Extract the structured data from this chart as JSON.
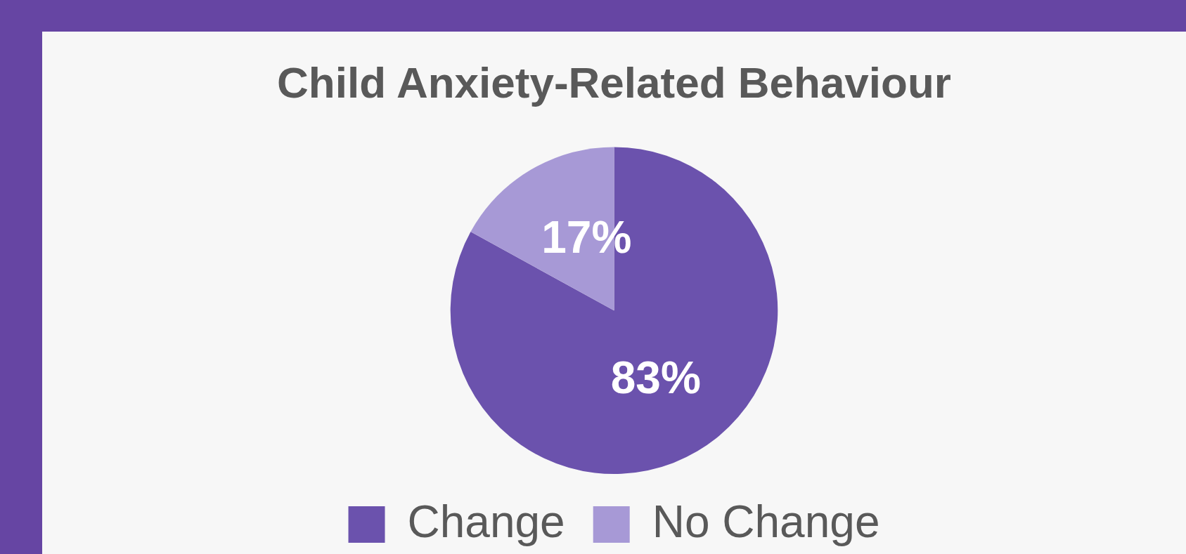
{
  "chart_data": {
    "type": "pie",
    "title": "Child Anxiety-Related Behaviour",
    "categories": [
      "Change",
      "No Change"
    ],
    "values": [
      83,
      17
    ],
    "colors": [
      "#6b52ad",
      "#a799d6"
    ],
    "value_labels": [
      "83%",
      "17%"
    ],
    "legend": "bottom"
  }
}
